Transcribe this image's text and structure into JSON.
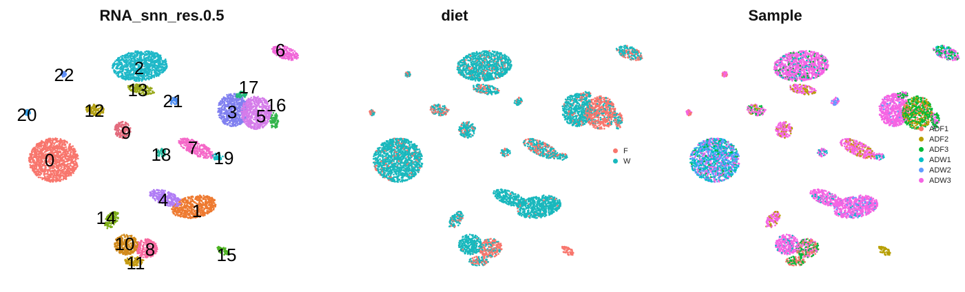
{
  "panels": [
    {
      "title": "RNA_snn_res.0.5"
    },
    {
      "title": "diet"
    },
    {
      "title": "Sample"
    }
  ],
  "legends": {
    "diet": [
      {
        "label": "F",
        "color": "#F8766D"
      },
      {
        "label": "W",
        "color": "#19B8BD"
      }
    ],
    "sample": [
      {
        "label": "ADF1",
        "color": "#F8766D"
      },
      {
        "label": "ADF2",
        "color": "#B79F00"
      },
      {
        "label": "ADF3",
        "color": "#00BA38"
      },
      {
        "label": "ADW1",
        "color": "#00BFC4"
      },
      {
        "label": "ADW2",
        "color": "#619CFF"
      },
      {
        "label": "ADW3",
        "color": "#F564E3"
      }
    ]
  },
  "chart_data": {
    "type": "scatter",
    "description": "UMAP embedding of single cells shown in three panels colored by cluster, diet and sample",
    "cluster_labels": [
      "0",
      "1",
      "2",
      "3",
      "4",
      "5",
      "6",
      "7",
      "8",
      "9",
      "10",
      "11",
      "12",
      "13",
      "14",
      "15",
      "16",
      "17",
      "18",
      "19",
      "20",
      "21",
      "22"
    ],
    "cluster_colors": {
      "0": "#F8766D",
      "1": "#EE7A30",
      "2": "#1FB8C8",
      "3": "#8080F0",
      "4": "#B07CF5",
      "5": "#D57CEA",
      "6": "#F066D8",
      "7": "#F568C8",
      "8": "#F7699F",
      "9": "#E36B7D",
      "10": "#D28A1A",
      "11": "#C49A12",
      "12": "#B4A012",
      "13": "#98A81A",
      "14": "#7DAE16",
      "15": "#4CB320",
      "16": "#34B44C",
      "17": "#22B87A",
      "18": "#1CB89E",
      "19": "#15BAC0",
      "20": "#3CA2E8",
      "21": "#4D8DF2",
      "22": "#5C8CF5"
    }
  }
}
